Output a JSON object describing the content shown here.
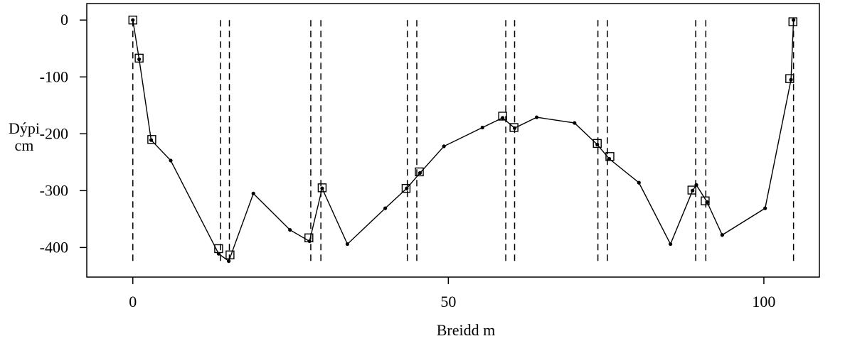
{
  "chart_data": {
    "type": "line",
    "xlabel": "Breidd m",
    "ylabel_lines": [
      "Dýpi",
      "cm"
    ],
    "xlim": [
      -7.3,
      108.8
    ],
    "ylim": [
      -452,
      29
    ],
    "xticks": [
      0,
      50,
      100
    ],
    "yticks": [
      0,
      -100,
      -200,
      -300,
      -400
    ],
    "color": "#000000",
    "x": [
      0,
      1.0,
      2.9,
      6.0,
      13.6,
      15.2,
      19.1,
      24.9,
      28.0,
      30.0,
      34.0,
      40.0,
      43.4,
      45.5,
      49.3,
      55.4,
      58.6,
      60.5,
      64.0,
      70.0,
      73.6,
      75.5,
      80.2,
      85.2,
      88.7,
      89.3,
      91.0,
      93.4,
      100.2,
      104.3,
      104.7
    ],
    "values": [
      0,
      -69,
      -211,
      -247,
      -411,
      -424,
      -305,
      -369,
      -389,
      -296,
      -394,
      -331,
      -296,
      -269,
      -222,
      -189,
      -172,
      -190,
      -171,
      -181,
      -219,
      -244,
      -286,
      -394,
      -300,
      -290,
      -320,
      -378,
      -331,
      -105,
      0
    ],
    "markers": {
      "x": [
        0,
        1.0,
        3.0,
        13.6,
        15.4,
        27.9,
        30.0,
        43.3,
        45.4,
        58.6,
        60.4,
        73.6,
        75.6,
        88.6,
        90.7,
        104.1,
        104.6
      ],
      "values": [
        0,
        -67,
        -210,
        -402,
        -413,
        -383,
        -295,
        -296,
        -267,
        -169,
        -189,
        -217,
        -240,
        -299,
        -318,
        -103,
        -3
      ]
    },
    "reference_lines": {
      "x": [
        0,
        13.9,
        15.3,
        28.2,
        29.8,
        43.5,
        45.0,
        59.1,
        60.5,
        73.7,
        75.2,
        89.2,
        90.8,
        104.7
      ],
      "top": 0,
      "bottom": -425
    }
  }
}
